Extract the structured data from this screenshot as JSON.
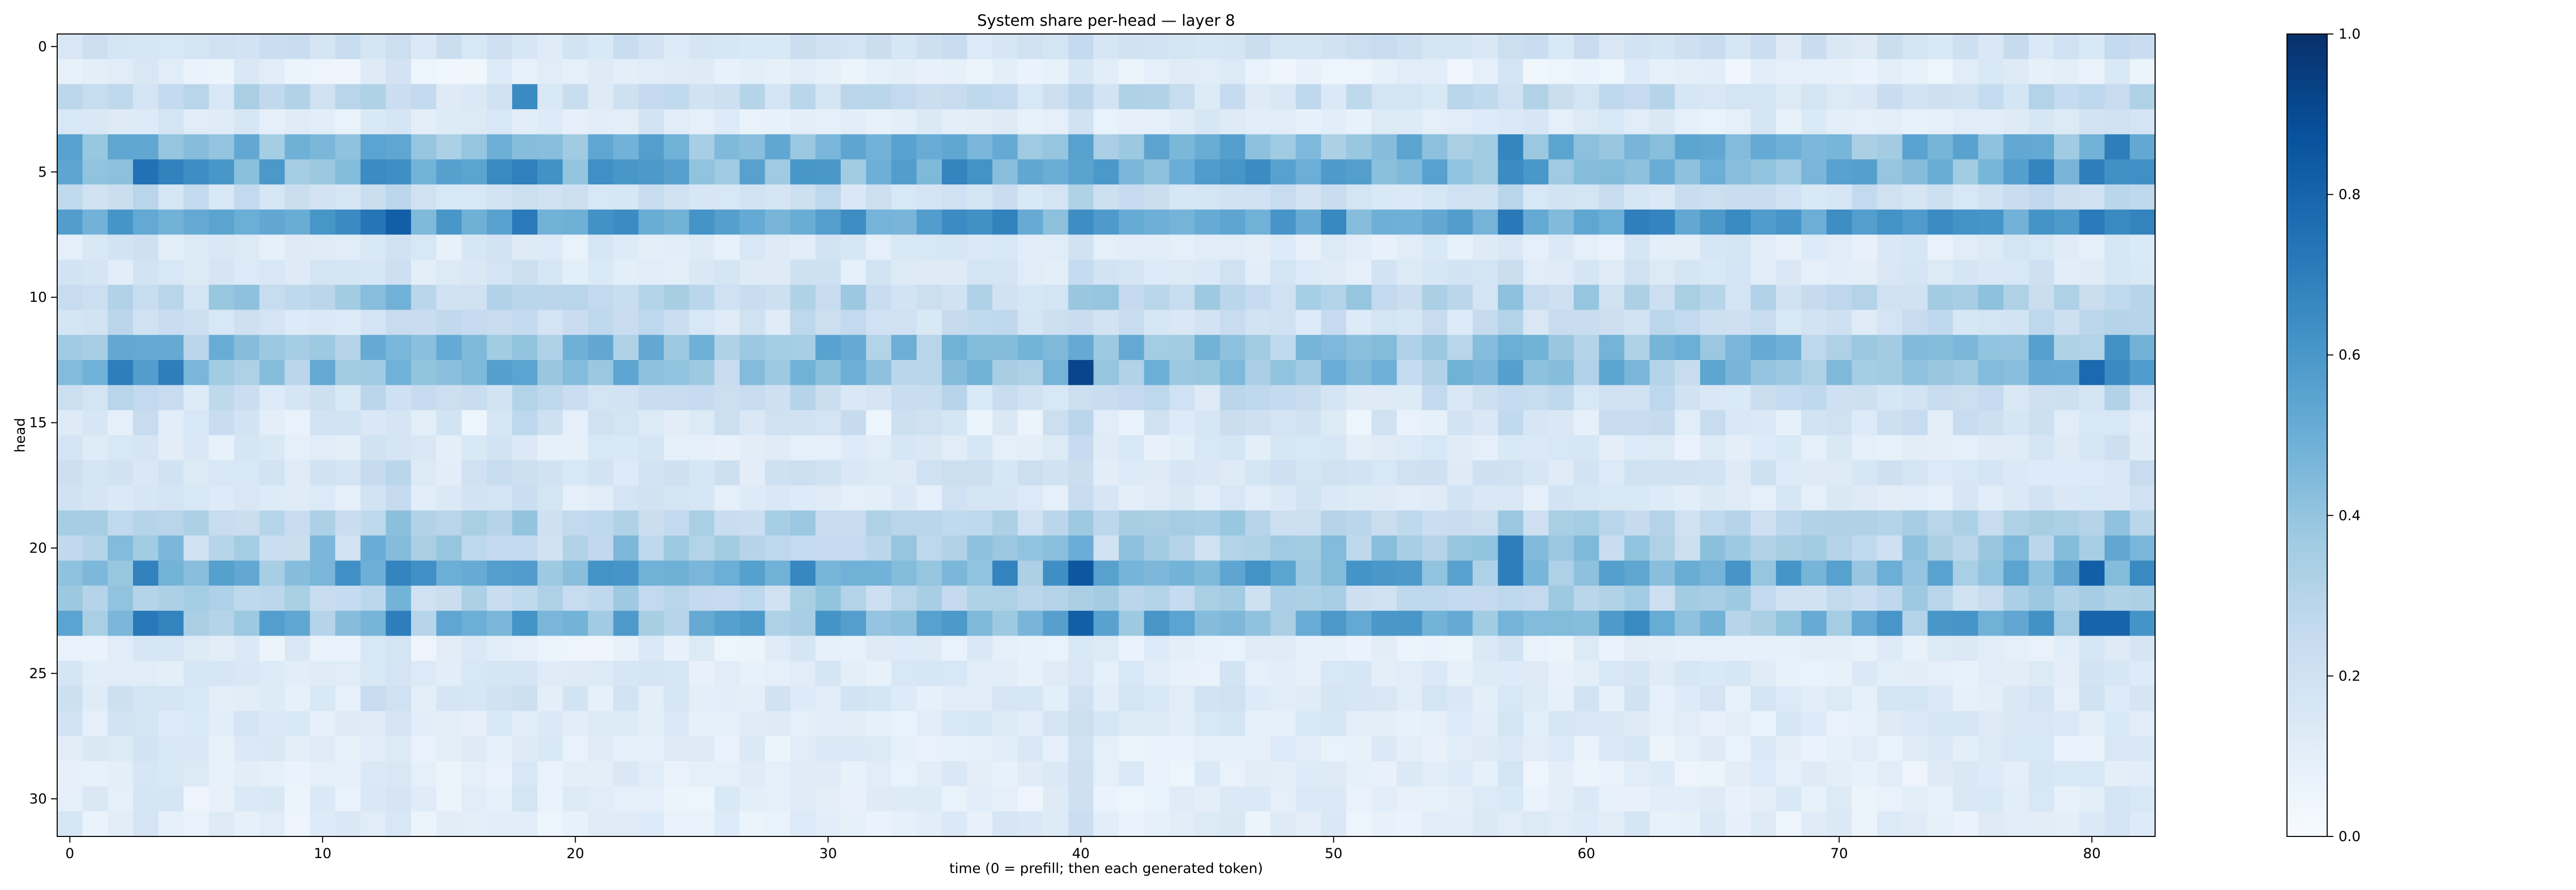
{
  "chart_data": {
    "type": "heatmap",
    "title": "System share per-head — layer 8",
    "xlabel": "time (0 = prefill; then each generated token)",
    "ylabel": "head",
    "x_ticks": [
      0,
      10,
      20,
      30,
      40,
      50,
      60,
      70,
      80
    ],
    "y_ticks": [
      0,
      5,
      10,
      15,
      20,
      25,
      30
    ],
    "colorbar": {
      "colormap": "Blues",
      "range": [
        0.0,
        1.0
      ],
      "ticks": [
        "0.0",
        "0.2",
        "0.4",
        "0.6",
        "0.8",
        "1.0"
      ],
      "stops": [
        "#f7fbff",
        "#deebf7",
        "#c6dbef",
        "#9ecae1",
        "#6baed6",
        "#4292c6",
        "#2171b5",
        "#08519c",
        "#08306b"
      ]
    },
    "n_heads": 32,
    "n_steps": 83,
    "row_means": [
      0.18,
      0.08,
      0.22,
      0.12,
      0.45,
      0.5,
      0.2,
      0.55,
      0.12,
      0.14,
      0.28,
      0.2,
      0.4,
      0.4,
      0.2,
      0.15,
      0.12,
      0.16,
      0.14,
      0.28,
      0.32,
      0.48,
      0.28,
      0.45,
      0.1,
      0.12,
      0.14,
      0.12,
      0.1,
      0.1,
      0.1,
      0.1
    ],
    "row_amplitudes": [
      0.06,
      0.05,
      0.1,
      0.05,
      0.12,
      0.15,
      0.06,
      0.14,
      0.05,
      0.05,
      0.12,
      0.08,
      0.14,
      0.16,
      0.08,
      0.1,
      0.05,
      0.06,
      0.05,
      0.08,
      0.14,
      0.16,
      0.1,
      0.16,
      0.05,
      0.05,
      0.06,
      0.05,
      0.05,
      0.05,
      0.05,
      0.05
    ],
    "column_boosts": [
      0.05,
      0.0,
      0.05,
      0.1,
      0.05,
      0.0,
      0.0,
      0.05,
      0.0,
      0.0,
      0.0,
      0.0,
      0.12,
      0.18,
      0.0,
      0.0,
      0.0,
      0.05,
      0.1,
      0.0,
      0.0,
      0.0,
      0.0,
      0.05,
      0.0,
      0.0,
      0.0,
      0.0,
      0.0,
      0.05,
      0.05,
      0.0,
      0.0,
      0.0,
      0.0,
      0.05,
      0.0,
      0.05,
      0.0,
      0.0,
      0.2,
      0.0,
      0.0,
      0.0,
      0.0,
      0.0,
      0.05,
      0.0,
      0.0,
      0.0,
      0.0,
      0.0,
      0.0,
      0.0,
      0.0,
      0.0,
      0.0,
      0.15,
      0.0,
      0.0,
      0.0,
      0.0,
      0.05,
      0.0,
      0.0,
      0.0,
      0.0,
      0.0,
      0.0,
      0.0,
      0.0,
      0.0,
      0.0,
      0.0,
      0.0,
      0.0,
      0.05,
      0.05,
      0.05,
      0.0,
      0.05,
      0.12,
      0.05
    ],
    "peaks": [
      [
        13,
        40,
        0.92
      ],
      [
        21,
        40,
        0.85
      ],
      [
        23,
        40,
        0.82
      ],
      [
        7,
        13,
        0.82
      ],
      [
        13,
        80,
        0.78
      ],
      [
        21,
        80,
        0.82
      ],
      [
        23,
        80,
        0.8
      ],
      [
        23,
        81,
        0.8
      ],
      [
        5,
        3,
        0.75
      ],
      [
        13,
        2,
        0.7
      ],
      [
        13,
        4,
        0.7
      ],
      [
        23,
        3,
        0.72
      ],
      [
        23,
        4,
        0.68
      ],
      [
        7,
        57,
        0.72
      ],
      [
        21,
        57,
        0.7
      ],
      [
        20,
        57,
        0.7
      ],
      [
        4,
        81,
        0.7
      ],
      [
        5,
        80,
        0.7
      ],
      [
        2,
        18,
        0.65
      ]
    ]
  }
}
